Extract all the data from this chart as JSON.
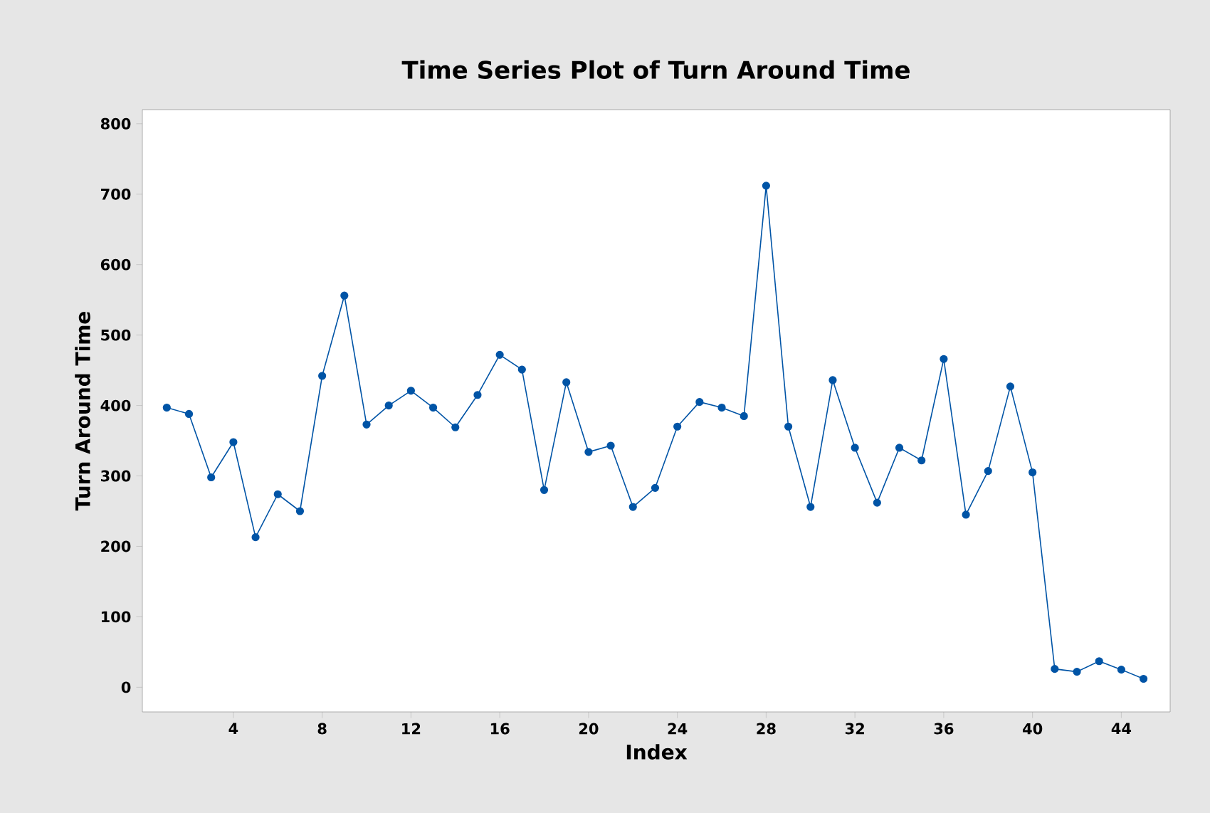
{
  "chart_data": {
    "type": "line",
    "title": "Time Series Plot of Turn Around Time",
    "xlabel": "Index",
    "ylabel": "Turn Around Time",
    "x": [
      1,
      2,
      3,
      4,
      5,
      6,
      7,
      8,
      9,
      10,
      11,
      12,
      13,
      14,
      15,
      16,
      17,
      18,
      19,
      20,
      21,
      22,
      23,
      24,
      25,
      26,
      27,
      28,
      29,
      30,
      31,
      32,
      33,
      34,
      35,
      36,
      37,
      38,
      39,
      40,
      41,
      42,
      43,
      44,
      45
    ],
    "series": [
      {
        "color": "#0054a6",
        "values": [
          397,
          388,
          298,
          348,
          213,
          274,
          250,
          442,
          556,
          373,
          400,
          421,
          397,
          369,
          415,
          472,
          451,
          280,
          433,
          334,
          343,
          256,
          283,
          370,
          405,
          397,
          385,
          712,
          370,
          256,
          436,
          340,
          262,
          340,
          322,
          466,
          245,
          307,
          427,
          305,
          26,
          22,
          37,
          25,
          12
        ]
      }
    ],
    "xlim": [
      -0.1,
      46.2
    ],
    "xticks": [
      4,
      8,
      12,
      16,
      20,
      24,
      28,
      32,
      36,
      40,
      44
    ],
    "ylim": [
      -35,
      820
    ],
    "yticks": [
      0,
      100,
      200,
      300,
      400,
      500,
      600,
      700,
      800
    ],
    "marker": "circle",
    "line_style": "solid"
  }
}
